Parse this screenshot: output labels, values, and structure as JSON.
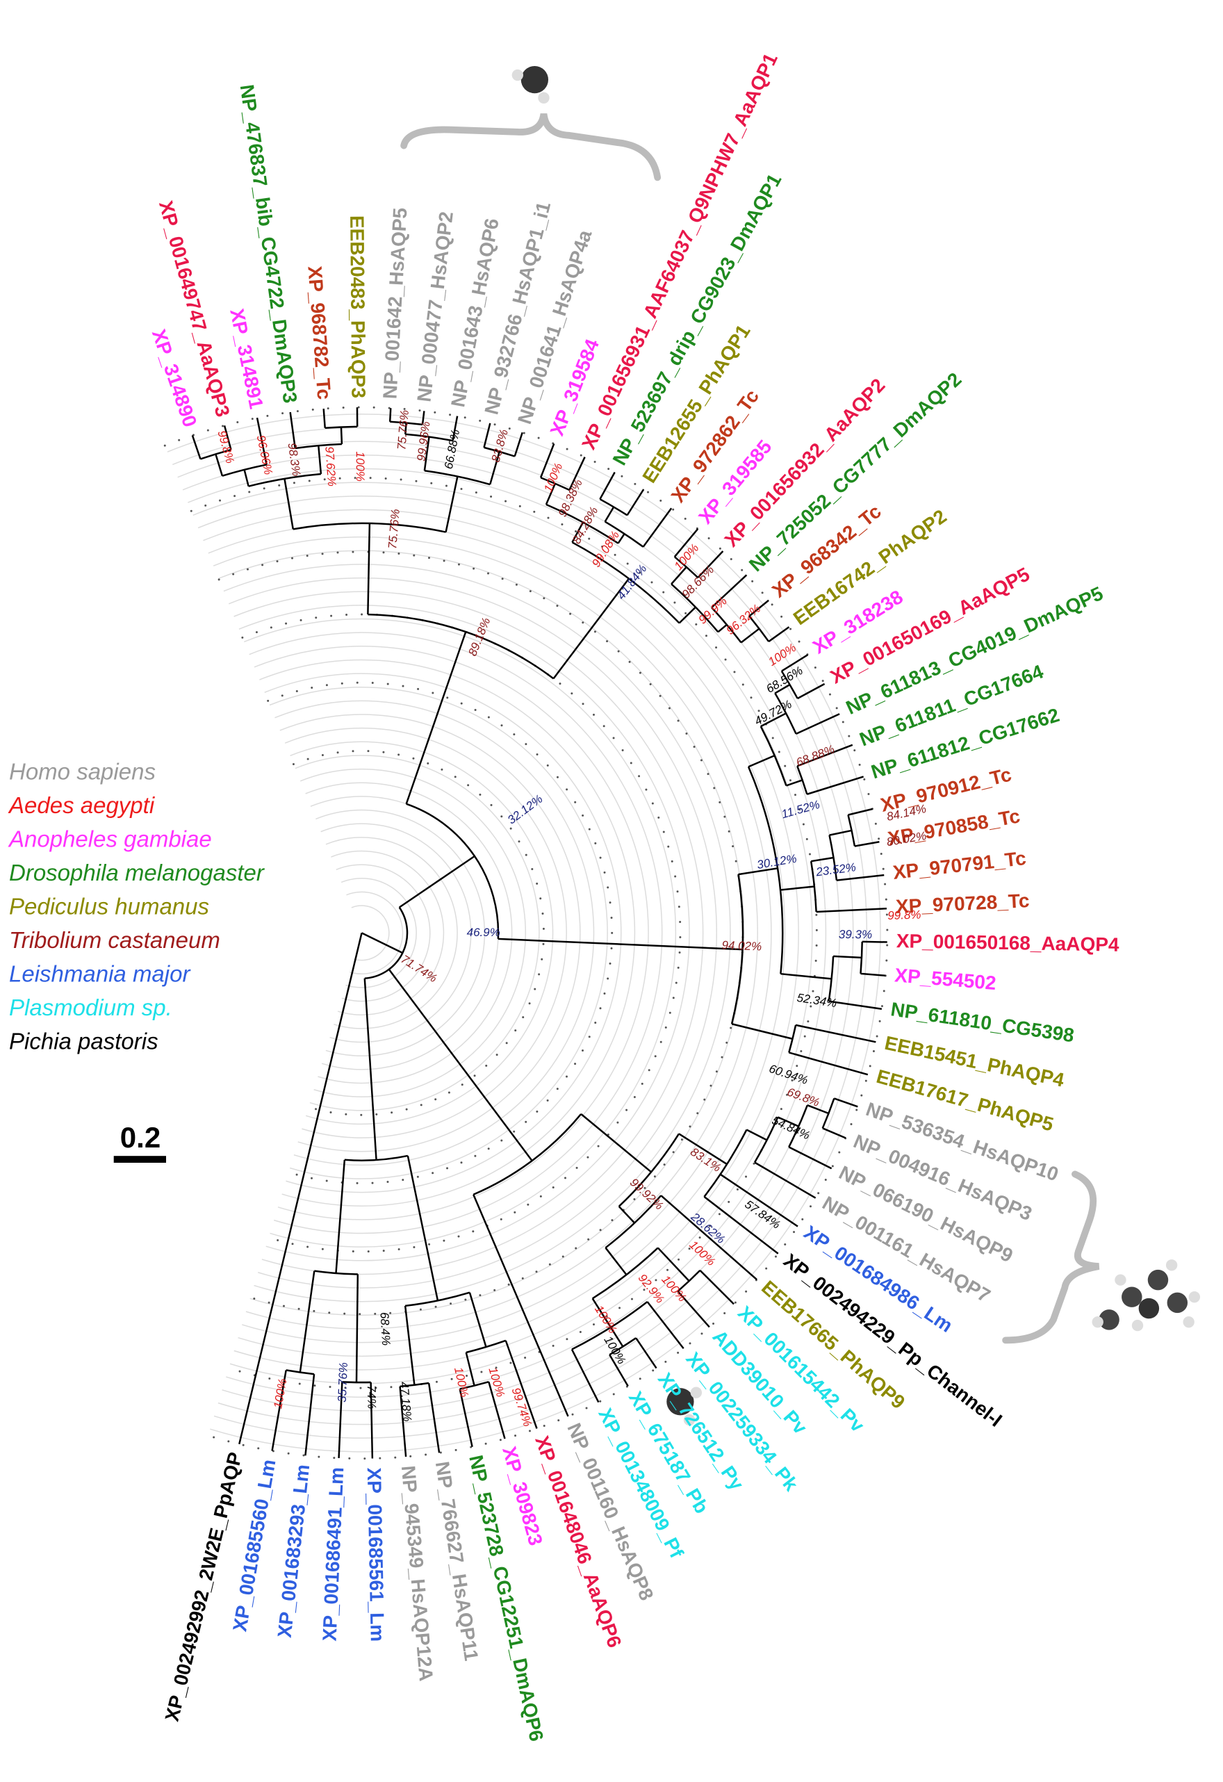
{
  "legend": [
    {
      "label": "Homo sapiens",
      "color": "#9a9a9a"
    },
    {
      "label": "Aedes aegypti",
      "color": "#ee1c1c"
    },
    {
      "label": "Anopheles gambiae",
      "color": "#ff33ff"
    },
    {
      "label": "Drosophila melanogaster",
      "color": "#1f8a1f"
    },
    {
      "label": "Pediculus humanus",
      "color": "#8c8a00"
    },
    {
      "label": "Tribolium castaneum",
      "color": "#a01c1c"
    },
    {
      "label": "Leishmania major",
      "color": "#2f5fe0"
    },
    {
      "label": "Plasmodium sp.",
      "color": "#1ee0e8"
    },
    {
      "label": "Pichia pastoris",
      "color": "#000000"
    }
  ],
  "scale_bar": "0.2",
  "leaves": [
    {
      "label": "XP_314890",
      "color": "#ff33ff"
    },
    {
      "label": "XP_001649747_AaAQP3",
      "color": "#e8174a"
    },
    {
      "label": "XP_314891",
      "color": "#ff33ff"
    },
    {
      "label": "NP_476837_bib_CG4722_DmAQP3",
      "color": "#1f8a1f"
    },
    {
      "label": "XP_968782_Tc",
      "color": "#c0391b"
    },
    {
      "label": "EEB20483_PhAQP3",
      "color": "#8c8a00"
    },
    {
      "label": "NP_001642_HsAQP5",
      "color": "#9a9a9a"
    },
    {
      "label": "NP_000477_HsAQP2",
      "color": "#9a9a9a"
    },
    {
      "label": "NP_001643_HsAQP6",
      "color": "#9a9a9a"
    },
    {
      "label": "NP_932766_HsAQP1_i1",
      "color": "#9a9a9a"
    },
    {
      "label": "NP_001641_HsAQP4a",
      "color": "#9a9a9a"
    },
    {
      "label": "XP_319584",
      "color": "#ff33ff"
    },
    {
      "label": "XP_001656931_AAF64037_Q9NPHW7_AaAQP1",
      "color": "#e8174a"
    },
    {
      "label": "NP_523697_drip_CG9023_DmAQP1",
      "color": "#1f8a1f"
    },
    {
      "label": "EEB12655_PhAQP1",
      "color": "#8c8a00"
    },
    {
      "label": "XP_972862_Tc",
      "color": "#c0391b"
    },
    {
      "label": "XP_319585",
      "color": "#ff33ff"
    },
    {
      "label": "XP_001656932_AaAQP2",
      "color": "#e8174a"
    },
    {
      "label": "NP_725052_CG7777_DmAQP2",
      "color": "#1f8a1f"
    },
    {
      "label": "XP_968342_Tc",
      "color": "#c0391b"
    },
    {
      "label": "EEB16742_PhAQP2",
      "color": "#8c8a00"
    },
    {
      "label": "XP_318238",
      "color": "#ff33ff"
    },
    {
      "label": "XP_001650169_AaAQP5",
      "color": "#e8174a"
    },
    {
      "label": "NP_611813_CG4019_DmAQP5",
      "color": "#1f8a1f"
    },
    {
      "label": "NP_611811_CG17664",
      "color": "#1f8a1f"
    },
    {
      "label": "NP_611812_CG17662",
      "color": "#1f8a1f"
    },
    {
      "label": "XP_970912_Tc",
      "color": "#c0391b"
    },
    {
      "label": "XP_970858_Tc",
      "color": "#c0391b"
    },
    {
      "label": "XP_970791_Tc",
      "color": "#c0391b"
    },
    {
      "label": "XP_970728_Tc",
      "color": "#c0391b"
    },
    {
      "label": "XP_001650168_AaAQP4",
      "color": "#e8174a"
    },
    {
      "label": "XP_554502",
      "color": "#ff33ff"
    },
    {
      "label": "NP_611810_CG5398",
      "color": "#1f8a1f"
    },
    {
      "label": "EEB15451_PhAQP4",
      "color": "#8c8a00"
    },
    {
      "label": "EEB17617_PhAQP5",
      "color": "#8c8a00"
    },
    {
      "label": "NP_536354_HsAQP10",
      "color": "#9a9a9a"
    },
    {
      "label": "NP_004916_HsAQP3",
      "color": "#9a9a9a"
    },
    {
      "label": "NP_066190_HsAQP9",
      "color": "#9a9a9a"
    },
    {
      "label": "NP_001161_HsAQP7",
      "color": "#9a9a9a"
    },
    {
      "label": "XP_001684986_Lm",
      "color": "#2f5fe0"
    },
    {
      "label": "XP_002494229_Pp_Channel-I",
      "color": "#000000"
    },
    {
      "label": "EEB17665_PhAQP9",
      "color": "#8c8a00"
    },
    {
      "label": "XP_001615442_Pv",
      "color": "#1ee0e8"
    },
    {
      "label": "ADD39010_Pv",
      "color": "#1ee0e8"
    },
    {
      "label": "XP_002259334_Pk",
      "color": "#1ee0e8"
    },
    {
      "label": "XP_726512_Py",
      "color": "#1ee0e8"
    },
    {
      "label": "XP_675187_Pb",
      "color": "#1ee0e8"
    },
    {
      "label": "XP_001348009_Pf",
      "color": "#1ee0e8"
    },
    {
      "label": "NP_001160_HsAQP8",
      "color": "#9a9a9a"
    },
    {
      "label": "XP_001648046_AaAQP6",
      "color": "#e8174a"
    },
    {
      "label": "XP_309823",
      "color": "#ff33ff"
    },
    {
      "label": "NP_523728_CG12251_DmAQP6",
      "color": "#1f8a1f"
    },
    {
      "label": "NP_766627_HsAQP11",
      "color": "#9a9a9a"
    },
    {
      "label": "NP_945349_HsAQP12A",
      "color": "#9a9a9a"
    },
    {
      "label": "XP_001685561_Lm",
      "color": "#2f5fe0"
    },
    {
      "label": "XP_001686491_Lm",
      "color": "#2f5fe0"
    },
    {
      "label": "XP_001683293_Lm",
      "color": "#2f5fe0"
    },
    {
      "label": "XP_001685560_Lm",
      "color": "#2f5fe0"
    },
    {
      "label": "XP_002492992_2W2E_PpAQP",
      "color": "#000000"
    }
  ],
  "support_values": [
    {
      "label": "99.8%",
      "color": "#e01b1b"
    },
    {
      "label": "96.06%",
      "color": "#e01b1b"
    },
    {
      "label": "98.3%",
      "color": "#8b1a1a"
    },
    {
      "label": "97.62%",
      "color": "#e01b1b"
    },
    {
      "label": "100%",
      "color": "#e01b1b"
    },
    {
      "label": "75.76%",
      "color": "#8b1a1a"
    },
    {
      "label": "99.96%",
      "color": "#8b1a1a"
    },
    {
      "label": "66.88%",
      "color": "#000000"
    },
    {
      "label": "83.8%",
      "color": "#8b1a1a"
    },
    {
      "label": "75.76%",
      "color": "#8b1a1a"
    },
    {
      "label": "100%",
      "color": "#e01b1b"
    },
    {
      "label": "98.38%",
      "color": "#8b1a1a"
    },
    {
      "label": "84.28%",
      "color": "#8b1a1a"
    },
    {
      "label": "99.08%",
      "color": "#e01b1b"
    },
    {
      "label": "41.84%",
      "color": "#1a237e"
    },
    {
      "label": "100%",
      "color": "#e01b1b"
    },
    {
      "label": "98.66%",
      "color": "#8b1a1a"
    },
    {
      "label": "99.9%",
      "color": "#e01b1b"
    },
    {
      "label": "96.32%",
      "color": "#e01b1b"
    },
    {
      "label": "89.18%",
      "color": "#8b1a1a"
    },
    {
      "label": "100%",
      "color": "#e01b1b"
    },
    {
      "label": "68.56%",
      "color": "#000000"
    },
    {
      "label": "49.72%",
      "color": "#000000"
    },
    {
      "label": "68.88%",
      "color": "#8b1a1a"
    },
    {
      "label": "32.12%",
      "color": "#1a237e"
    },
    {
      "label": "11.52%",
      "color": "#1a237e"
    },
    {
      "label": "84.14%",
      "color": "#8b1a1a"
    },
    {
      "label": "80.02%",
      "color": "#8b1a1a"
    },
    {
      "label": "30.12%",
      "color": "#1a237e"
    },
    {
      "label": "23.52%",
      "color": "#1a237e"
    },
    {
      "label": "99.8%",
      "color": "#e01b1b"
    },
    {
      "label": "39.3%",
      "color": "#1a237e"
    },
    {
      "label": "46.9%",
      "color": "#1a237e"
    },
    {
      "label": "94.02%",
      "color": "#8b1a1a"
    },
    {
      "label": "71.74%",
      "color": "#8b1a1a"
    },
    {
      "label": "52.34%",
      "color": "#000000"
    },
    {
      "label": "60.94%",
      "color": "#000000"
    },
    {
      "label": "69.8%",
      "color": "#8b1a1a"
    },
    {
      "label": "54.84%",
      "color": "#000000"
    },
    {
      "label": "83.1%",
      "color": "#8b1a1a"
    },
    {
      "label": "99.92%",
      "color": "#8b1a1a"
    },
    {
      "label": "57.84%",
      "color": "#000000"
    },
    {
      "label": "28.62%",
      "color": "#1a237e"
    },
    {
      "label": "100%",
      "color": "#e01b1b"
    },
    {
      "label": "92.9%",
      "color": "#e01b1b"
    },
    {
      "label": "100%",
      "color": "#e01b1b"
    },
    {
      "label": "100%",
      "color": "#e01b1b"
    },
    {
      "label": "100%",
      "color": "#000000"
    },
    {
      "label": "68.4%",
      "color": "#000000"
    },
    {
      "label": "100%",
      "color": "#e01b1b"
    },
    {
      "label": "35.76%",
      "color": "#1a237e"
    },
    {
      "label": "74%",
      "color": "#000000"
    },
    {
      "label": "47.18%",
      "color": "#000000"
    },
    {
      "label": "100%",
      "color": "#e01b1b"
    },
    {
      "label": "100%",
      "color": "#e01b1b"
    },
    {
      "label": "99.74%",
      "color": "#e01b1b"
    }
  ]
}
